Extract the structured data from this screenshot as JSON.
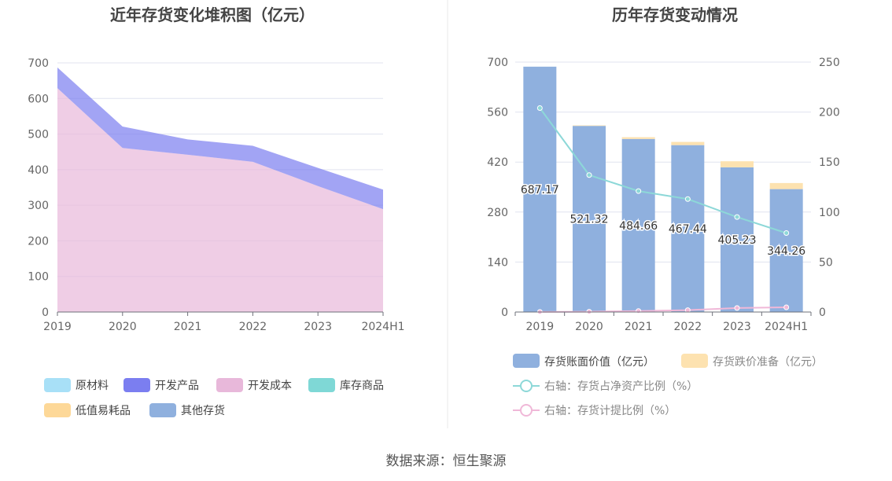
{
  "chart_data": [
    {
      "type": "area",
      "title": "近年存货变化堆积图（亿元）",
      "categories": [
        "2019",
        "2020",
        "2021",
        "2022",
        "2023",
        "2024H1"
      ],
      "ylim": [
        0,
        700
      ],
      "yticks": [
        0,
        100,
        200,
        300,
        400,
        500,
        600,
        700
      ],
      "stacked": true,
      "series": [
        {
          "name": "原材料",
          "color": "#a8e0f7",
          "values": [
            0,
            0,
            0,
            0,
            0,
            0
          ]
        },
        {
          "name": "开发产品",
          "color": "#7b7ef0",
          "values": [
            58,
            60,
            43,
            45,
            51,
            55
          ]
        },
        {
          "name": "开发成本",
          "color": "#e8b8da",
          "values": [
            629,
            461,
            442,
            422,
            354,
            289
          ]
        },
        {
          "name": "库存商品",
          "color": "#7fd8d6",
          "values": [
            0,
            0,
            0,
            0,
            0,
            0
          ]
        },
        {
          "name": "低值易耗品",
          "color": "#fdd898",
          "values": [
            0,
            0,
            0,
            0,
            0,
            0
          ]
        },
        {
          "name": "其他存货",
          "color": "#8fb0de",
          "values": [
            0,
            0,
            0,
            0,
            0,
            0
          ]
        }
      ],
      "legend_placement": "bottom",
      "grid": true
    },
    {
      "type": "bar",
      "title": "历年存货变动情况",
      "categories": [
        "2019",
        "2020",
        "2021",
        "2022",
        "2023",
        "2024H1"
      ],
      "ylim": [
        0,
        700
      ],
      "yticks": [
        0,
        140,
        280,
        420,
        560,
        700
      ],
      "y2lim": [
        0,
        250
      ],
      "y2ticks": [
        0,
        50,
        100,
        150,
        200,
        250
      ],
      "series": [
        {
          "name": "存货账面价值（亿元）",
          "type": "bar",
          "color": "#8fb0de",
          "values": [
            687.17,
            521.32,
            484.66,
            467.44,
            405.23,
            344.26
          ]
        },
        {
          "name": "存货跌价准备（亿元）",
          "type": "bar",
          "color": "#fde2b0",
          "values": [
            0,
            1.5,
            5,
            9,
            17,
            17
          ]
        },
        {
          "name": "右轴：存货占净资产比例（%）",
          "type": "line",
          "axis": "right",
          "color": "#8dd8d8",
          "values": [
            204,
            137,
            121,
            113,
            95,
            79
          ]
        },
        {
          "name": "右轴：存货计提比例（%）",
          "type": "line",
          "axis": "right",
          "color": "#f0b8d8",
          "values": [
            0.1,
            0.3,
            1.0,
            1.9,
            4.0,
            4.7
          ]
        }
      ],
      "data_labels": [
        "687.17",
        "521.32",
        "484.66",
        "467.44",
        "405.23",
        "344.26"
      ],
      "legend_placement": "bottom",
      "grid": true
    }
  ],
  "footer": {
    "source": "数据来源：恒生聚源"
  }
}
